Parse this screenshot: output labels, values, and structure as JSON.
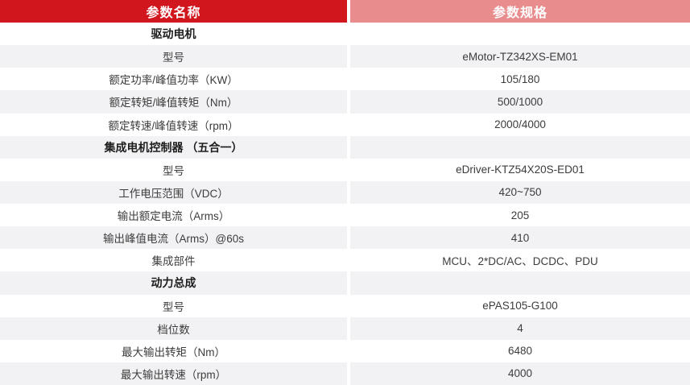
{
  "table": {
    "columns": [
      {
        "label": "参数名称"
      },
      {
        "label": "参数规格"
      }
    ],
    "rows": [
      {
        "name": "驱动电机",
        "value": "",
        "section": true
      },
      {
        "name": "型号",
        "value": "eMotor-TZ342XS-EM01",
        "section": false
      },
      {
        "name": "额定功率/峰值功率（KW）",
        "value": "105/180",
        "section": false
      },
      {
        "name": "额定转矩/峰值转矩（Nm）",
        "value": "500/1000",
        "section": false
      },
      {
        "name": "额定转速/峰值转速（rpm）",
        "value": "2000/4000",
        "section": false
      },
      {
        "name": "集成电机控制器 （五合一）",
        "value": "",
        "section": true
      },
      {
        "name": "型号",
        "value": "eDriver-KTZ54X20S-ED01",
        "section": false
      },
      {
        "name": "工作电压范围（VDC）",
        "value": "420~750",
        "section": false
      },
      {
        "name": "输出额定电流（Arms）",
        "value": "205",
        "section": false
      },
      {
        "name": "输出峰值电流（Arms）@60s",
        "value": "410",
        "section": false
      },
      {
        "name": "集成部件",
        "value": "MCU、2*DC/AC、DCDC、PDU",
        "section": false
      },
      {
        "name": "动力总成",
        "value": "",
        "section": true
      },
      {
        "name": "型号",
        "value": "ePAS105-G100",
        "section": false
      },
      {
        "name": "档位数",
        "value": "4",
        "section": false
      },
      {
        "name": "最大输出转矩（Nm）",
        "value": "6480",
        "section": false
      },
      {
        "name": "最大输出转速（rpm）",
        "value": "4000",
        "section": false
      }
    ],
    "colors": {
      "header_left_bg": "#d2161e",
      "header_right_bg": "#e88c8e",
      "header_text": "#ffffff",
      "row_bg": "#ffffff",
      "row_alt_bg": "#f2f2f4",
      "text": "#3c3c3c",
      "section_text": "#1d1d1d"
    }
  }
}
